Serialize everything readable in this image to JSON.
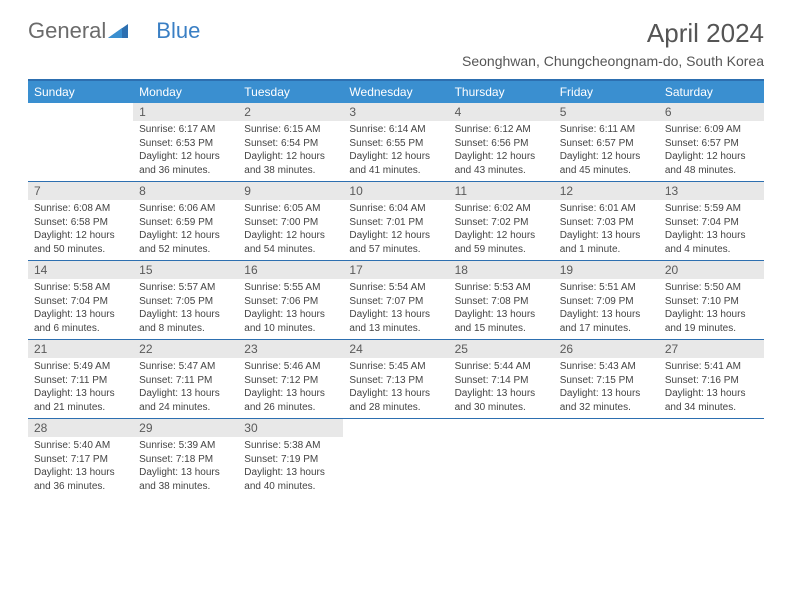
{
  "logo": {
    "part1": "General",
    "part2": "Blue"
  },
  "title": "April 2024",
  "location": "Seonghwan, Chungcheongnam-do, South Korea",
  "dayNames": [
    "Sunday",
    "Monday",
    "Tuesday",
    "Wednesday",
    "Thursday",
    "Friday",
    "Saturday"
  ],
  "colors": {
    "headerBg": "#3a8fd0",
    "rule": "#2d6fb0",
    "dayNumBg": "#e8e8e8",
    "logoGray": "#6b6b6b",
    "logoBlue": "#3a7fc4"
  },
  "weeks": [
    [
      {
        "empty": true
      },
      {
        "day": "1",
        "sunrise": "Sunrise: 6:17 AM",
        "sunset": "Sunset: 6:53 PM",
        "daylight1": "Daylight: 12 hours",
        "daylight2": "and 36 minutes."
      },
      {
        "day": "2",
        "sunrise": "Sunrise: 6:15 AM",
        "sunset": "Sunset: 6:54 PM",
        "daylight1": "Daylight: 12 hours",
        "daylight2": "and 38 minutes."
      },
      {
        "day": "3",
        "sunrise": "Sunrise: 6:14 AM",
        "sunset": "Sunset: 6:55 PM",
        "daylight1": "Daylight: 12 hours",
        "daylight2": "and 41 minutes."
      },
      {
        "day": "4",
        "sunrise": "Sunrise: 6:12 AM",
        "sunset": "Sunset: 6:56 PM",
        "daylight1": "Daylight: 12 hours",
        "daylight2": "and 43 minutes."
      },
      {
        "day": "5",
        "sunrise": "Sunrise: 6:11 AM",
        "sunset": "Sunset: 6:57 PM",
        "daylight1": "Daylight: 12 hours",
        "daylight2": "and 45 minutes."
      },
      {
        "day": "6",
        "sunrise": "Sunrise: 6:09 AM",
        "sunset": "Sunset: 6:57 PM",
        "daylight1": "Daylight: 12 hours",
        "daylight2": "and 48 minutes."
      }
    ],
    [
      {
        "day": "7",
        "sunrise": "Sunrise: 6:08 AM",
        "sunset": "Sunset: 6:58 PM",
        "daylight1": "Daylight: 12 hours",
        "daylight2": "and 50 minutes."
      },
      {
        "day": "8",
        "sunrise": "Sunrise: 6:06 AM",
        "sunset": "Sunset: 6:59 PM",
        "daylight1": "Daylight: 12 hours",
        "daylight2": "and 52 minutes."
      },
      {
        "day": "9",
        "sunrise": "Sunrise: 6:05 AM",
        "sunset": "Sunset: 7:00 PM",
        "daylight1": "Daylight: 12 hours",
        "daylight2": "and 54 minutes."
      },
      {
        "day": "10",
        "sunrise": "Sunrise: 6:04 AM",
        "sunset": "Sunset: 7:01 PM",
        "daylight1": "Daylight: 12 hours",
        "daylight2": "and 57 minutes."
      },
      {
        "day": "11",
        "sunrise": "Sunrise: 6:02 AM",
        "sunset": "Sunset: 7:02 PM",
        "daylight1": "Daylight: 12 hours",
        "daylight2": "and 59 minutes."
      },
      {
        "day": "12",
        "sunrise": "Sunrise: 6:01 AM",
        "sunset": "Sunset: 7:03 PM",
        "daylight1": "Daylight: 13 hours",
        "daylight2": "and 1 minute."
      },
      {
        "day": "13",
        "sunrise": "Sunrise: 5:59 AM",
        "sunset": "Sunset: 7:04 PM",
        "daylight1": "Daylight: 13 hours",
        "daylight2": "and 4 minutes."
      }
    ],
    [
      {
        "day": "14",
        "sunrise": "Sunrise: 5:58 AM",
        "sunset": "Sunset: 7:04 PM",
        "daylight1": "Daylight: 13 hours",
        "daylight2": "and 6 minutes."
      },
      {
        "day": "15",
        "sunrise": "Sunrise: 5:57 AM",
        "sunset": "Sunset: 7:05 PM",
        "daylight1": "Daylight: 13 hours",
        "daylight2": "and 8 minutes."
      },
      {
        "day": "16",
        "sunrise": "Sunrise: 5:55 AM",
        "sunset": "Sunset: 7:06 PM",
        "daylight1": "Daylight: 13 hours",
        "daylight2": "and 10 minutes."
      },
      {
        "day": "17",
        "sunrise": "Sunrise: 5:54 AM",
        "sunset": "Sunset: 7:07 PM",
        "daylight1": "Daylight: 13 hours",
        "daylight2": "and 13 minutes."
      },
      {
        "day": "18",
        "sunrise": "Sunrise: 5:53 AM",
        "sunset": "Sunset: 7:08 PM",
        "daylight1": "Daylight: 13 hours",
        "daylight2": "and 15 minutes."
      },
      {
        "day": "19",
        "sunrise": "Sunrise: 5:51 AM",
        "sunset": "Sunset: 7:09 PM",
        "daylight1": "Daylight: 13 hours",
        "daylight2": "and 17 minutes."
      },
      {
        "day": "20",
        "sunrise": "Sunrise: 5:50 AM",
        "sunset": "Sunset: 7:10 PM",
        "daylight1": "Daylight: 13 hours",
        "daylight2": "and 19 minutes."
      }
    ],
    [
      {
        "day": "21",
        "sunrise": "Sunrise: 5:49 AM",
        "sunset": "Sunset: 7:11 PM",
        "daylight1": "Daylight: 13 hours",
        "daylight2": "and 21 minutes."
      },
      {
        "day": "22",
        "sunrise": "Sunrise: 5:47 AM",
        "sunset": "Sunset: 7:11 PM",
        "daylight1": "Daylight: 13 hours",
        "daylight2": "and 24 minutes."
      },
      {
        "day": "23",
        "sunrise": "Sunrise: 5:46 AM",
        "sunset": "Sunset: 7:12 PM",
        "daylight1": "Daylight: 13 hours",
        "daylight2": "and 26 minutes."
      },
      {
        "day": "24",
        "sunrise": "Sunrise: 5:45 AM",
        "sunset": "Sunset: 7:13 PM",
        "daylight1": "Daylight: 13 hours",
        "daylight2": "and 28 minutes."
      },
      {
        "day": "25",
        "sunrise": "Sunrise: 5:44 AM",
        "sunset": "Sunset: 7:14 PM",
        "daylight1": "Daylight: 13 hours",
        "daylight2": "and 30 minutes."
      },
      {
        "day": "26",
        "sunrise": "Sunrise: 5:43 AM",
        "sunset": "Sunset: 7:15 PM",
        "daylight1": "Daylight: 13 hours",
        "daylight2": "and 32 minutes."
      },
      {
        "day": "27",
        "sunrise": "Sunrise: 5:41 AM",
        "sunset": "Sunset: 7:16 PM",
        "daylight1": "Daylight: 13 hours",
        "daylight2": "and 34 minutes."
      }
    ],
    [
      {
        "day": "28",
        "sunrise": "Sunrise: 5:40 AM",
        "sunset": "Sunset: 7:17 PM",
        "daylight1": "Daylight: 13 hours",
        "daylight2": "and 36 minutes."
      },
      {
        "day": "29",
        "sunrise": "Sunrise: 5:39 AM",
        "sunset": "Sunset: 7:18 PM",
        "daylight1": "Daylight: 13 hours",
        "daylight2": "and 38 minutes."
      },
      {
        "day": "30",
        "sunrise": "Sunrise: 5:38 AM",
        "sunset": "Sunset: 7:19 PM",
        "daylight1": "Daylight: 13 hours",
        "daylight2": "and 40 minutes."
      },
      {
        "empty": true
      },
      {
        "empty": true
      },
      {
        "empty": true
      },
      {
        "empty": true
      }
    ]
  ]
}
